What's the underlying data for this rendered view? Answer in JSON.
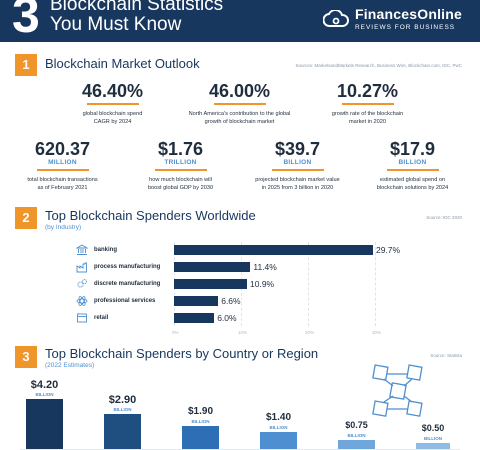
{
  "header": {
    "number": "3",
    "title_line1": "Blockchain Statistics",
    "title_line2": "You Must Know",
    "brand_name": "FinancesOnline",
    "brand_tagline": "REVIEWS FOR BUSINESS",
    "background": "#17375e"
  },
  "colors": {
    "accent_orange": "#f0952a",
    "navy": "#17375e",
    "blue": "#4d8fd0"
  },
  "section1": {
    "number": "1",
    "title": "Blockchain Market Outlook",
    "source": "Sources: MarketsandMarkets Research, Business Wire, Blockchain.com, IDC, PwC",
    "stats": [
      {
        "value": "46.40%",
        "unit": "",
        "desc_1": "global blockchain spend",
        "desc_2": "CAGR by 2024"
      },
      {
        "value": "46.00%",
        "unit": "",
        "desc_1": "North America's contribution to the global",
        "desc_2": "growth of blockchain market"
      },
      {
        "value": "10.27%",
        "unit": "",
        "desc_1": "growth rate of the blockchain",
        "desc_2": "market in 2020"
      },
      {
        "value": "620.37",
        "unit": "MILLION",
        "desc_1": "total blockchain transactions",
        "desc_2": "as of February 2021"
      },
      {
        "value": "$1.76",
        "unit": "TRILLION",
        "desc_1": "how much blockchain will",
        "desc_2": "boost global GDP by 2030"
      },
      {
        "value": "$39.7",
        "unit": "BILLION",
        "desc_1": "projected blockchain market value",
        "desc_2": "in 2025 from 3 billion in 2020"
      },
      {
        "value": "$17.9",
        "unit": "BILLION",
        "desc_1": "estimated global spend on",
        "desc_2": "blockchain solutions by 2024"
      }
    ]
  },
  "section2": {
    "number": "2",
    "title": "Top Blockchain Spenders Worldwide",
    "subtitle": "(by Industry)",
    "source": "Source: IDC 2020",
    "icons": [
      "bank-icon",
      "factory-icon",
      "gears-icon",
      "atom-icon",
      "cart-icon"
    ]
  },
  "section3": {
    "number": "3",
    "title": "Top Blockchain Spenders by Country or Region",
    "subtitle": "(2022 Estimates)",
    "source": "Source: Statista",
    "icon": "blockchain-network-icon"
  },
  "chart_data": [
    {
      "type": "bar",
      "orientation": "horizontal",
      "title": "Top Blockchain Spenders Worldwide",
      "subtitle": "(by Industry)",
      "categories": [
        "banking",
        "process manufacturing",
        "discrete manufacturing",
        "professional services",
        "retail"
      ],
      "values": [
        29.7,
        11.4,
        10.9,
        6.6,
        6.0
      ],
      "value_labels": [
        "29.7%",
        "11.4%",
        "10.9%",
        "6.6%",
        "6.0%"
      ],
      "x_ticks": [
        "0%",
        "10%",
        "20%",
        "30%"
      ],
      "xlim": [
        0,
        30
      ],
      "grid": true,
      "bar_color": "#17375e"
    },
    {
      "type": "bar",
      "orientation": "vertical",
      "title": "Top Blockchain Spenders by Country or Region",
      "subtitle": "(2022 Estimates)",
      "values": [
        4.2,
        2.9,
        1.9,
        1.4,
        0.75,
        0.5
      ],
      "value_labels": [
        "$4.20",
        "$2.90",
        "$1.90",
        "$1.40",
        "$0.75",
        "$0.50"
      ],
      "unit_label": "BILLION",
      "ylim": [
        0,
        4.2
      ],
      "bar_colors": [
        "#17375e",
        "#1e4f80",
        "#2d6eb5",
        "#4d8fd0",
        "#6fa6dc",
        "#8fbbe5"
      ]
    }
  ]
}
